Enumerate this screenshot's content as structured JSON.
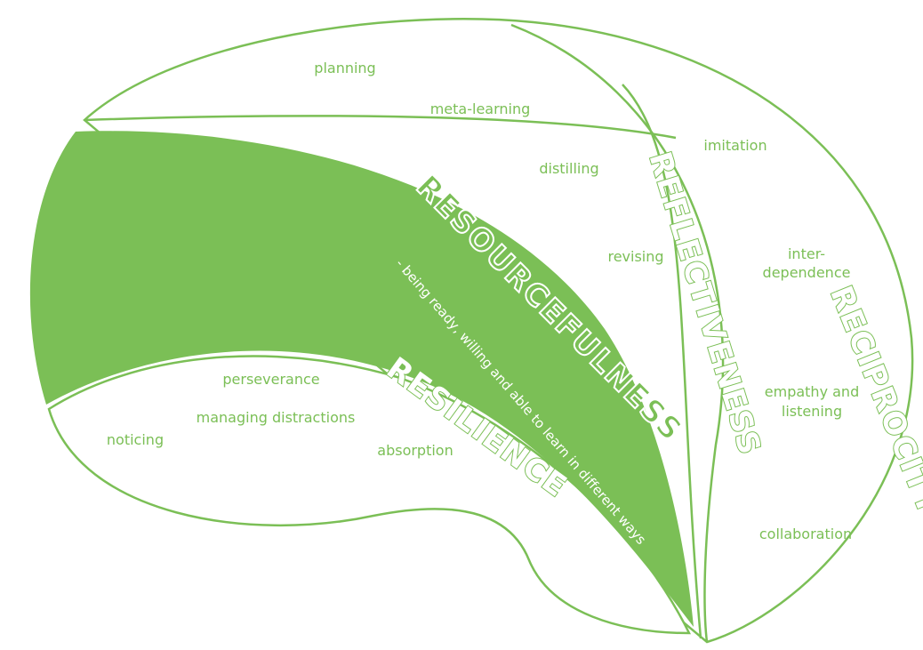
{
  "sections": [
    {
      "title": "RESILIENCE",
      "items": [
        "perseverance",
        "managing distractions",
        "noticing",
        "absorption"
      ]
    },
    {
      "title": "RESOURCEFULNESS",
      "description": "- being ready, willing and able to learn in different ways"
    },
    {
      "title": "REFLECTIVENESS",
      "items": [
        "planning",
        "meta-learning",
        "distilling",
        "revising"
      ]
    },
    {
      "title": "RECIPROCITY",
      "items": [
        "imitation",
        "inter-",
        "dependence",
        "empathy and",
        "listening",
        "collaboration"
      ]
    }
  ]
}
